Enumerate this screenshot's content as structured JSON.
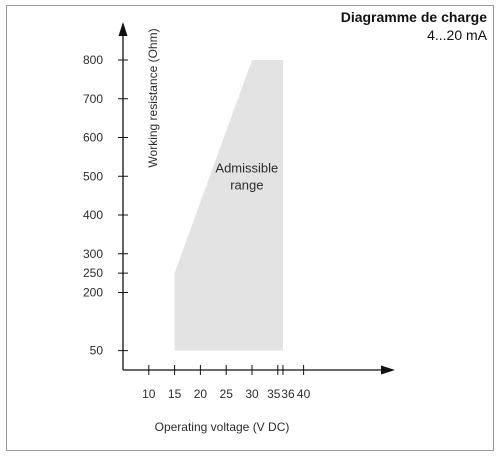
{
  "chart_data": {
    "type": "area",
    "title": "Diagramme de charge",
    "subtitle": "4...20 mA",
    "xlabel": "Operating voltage  (V DC)",
    "ylabel": "Working resistance  (Ohm)",
    "x_ticks": [
      10,
      15,
      20,
      25,
      30,
      35,
      36,
      40
    ],
    "x_tick_labels": [
      "10",
      "15",
      "20",
      "25",
      "30",
      "35",
      "36",
      "40"
    ],
    "y_ticks": [
      50,
      200,
      250,
      300,
      400,
      500,
      600,
      700,
      800
    ],
    "y_tick_labels": [
      "50",
      "200",
      "250",
      "300",
      "400",
      "500",
      "600",
      "700",
      "800"
    ],
    "xlim": [
      5,
      45
    ],
    "ylim": [
      0,
      860
    ],
    "series": [
      {
        "x": [
          15,
          15,
          30,
          36,
          36
        ],
        "y": [
          50,
          250,
          800,
          800,
          50
        ],
        "color": "#e3e3e3"
      }
    ],
    "annotation": [
      "Admissible",
      "range"
    ],
    "annotation_position": {
      "x": 29,
      "y": 510
    },
    "grid": false,
    "colors": {
      "area": "#e3e3e3",
      "axis": "#111111",
      "text": "#2b2b2b"
    }
  }
}
